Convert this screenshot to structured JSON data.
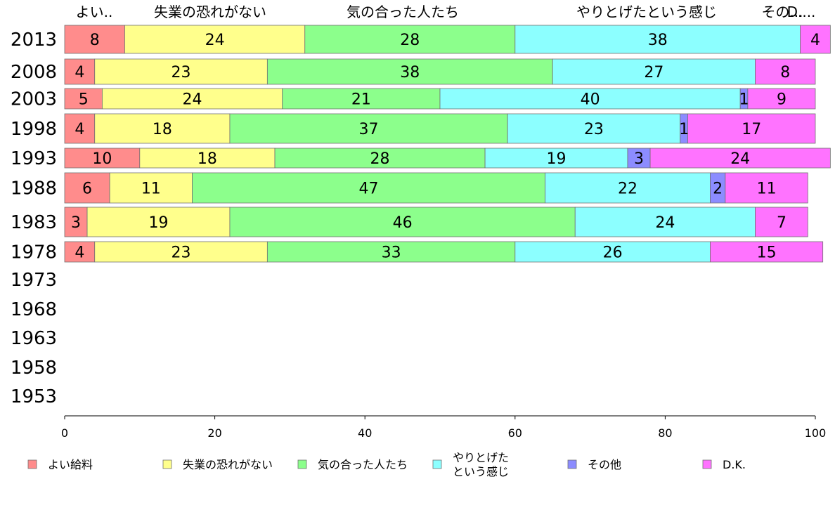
{
  "chart_data": {
    "type": "bar",
    "orientation": "horizontal",
    "stacked": true,
    "xlim": [
      0,
      100
    ],
    "x_ticks": [
      "0",
      "20",
      "40",
      "60",
      "80",
      "100"
    ],
    "categories": [
      "2013",
      "2008",
      "2003",
      "1998",
      "1993",
      "1988",
      "1983",
      "1978",
      "1973",
      "1968",
      "1963",
      "1958",
      "1953"
    ],
    "top_labels": [
      "よい..",
      "失業の恐れがない",
      "気の合った人たち",
      "やりとげたという感じ",
      "その...",
      "D...."
    ],
    "series": [
      {
        "name": "よい給料",
        "legend": [
          "よい給料"
        ],
        "color": "#ff8c8c",
        "values": [
          8,
          4,
          5,
          4,
          10,
          6,
          3,
          4,
          null,
          null,
          null,
          null,
          null
        ]
      },
      {
        "name": "失業の恐れがない",
        "legend": [
          "失業の恐れがない"
        ],
        "color": "#ffff8c",
        "values": [
          24,
          23,
          24,
          18,
          18,
          11,
          19,
          23,
          null,
          null,
          null,
          null,
          null
        ]
      },
      {
        "name": "気の合った人たち",
        "legend": [
          "気の合った人たち"
        ],
        "color": "#8cff8c",
        "values": [
          28,
          38,
          21,
          37,
          28,
          47,
          46,
          33,
          null,
          null,
          null,
          null,
          null
        ]
      },
      {
        "name": "やりとげたという感じ",
        "legend": [
          "やりとげた",
          "という感じ"
        ],
        "color": "#8cffff",
        "values": [
          38,
          27,
          40,
          23,
          19,
          22,
          24,
          26,
          null,
          null,
          null,
          null,
          null
        ]
      },
      {
        "name": "その他",
        "legend": [
          "その他"
        ],
        "color": "#8c8cff",
        "values": [
          0,
          0,
          1,
          1,
          3,
          2,
          0,
          0,
          null,
          null,
          null,
          null,
          null
        ]
      },
      {
        "name": "D.K.",
        "legend": [
          "D.K."
        ],
        "color": "#ff73ff",
        "values": [
          4,
          8,
          9,
          17,
          24,
          11,
          7,
          15,
          null,
          null,
          null,
          null,
          null
        ]
      }
    ],
    "grid": false,
    "legend_position": "bottom"
  }
}
